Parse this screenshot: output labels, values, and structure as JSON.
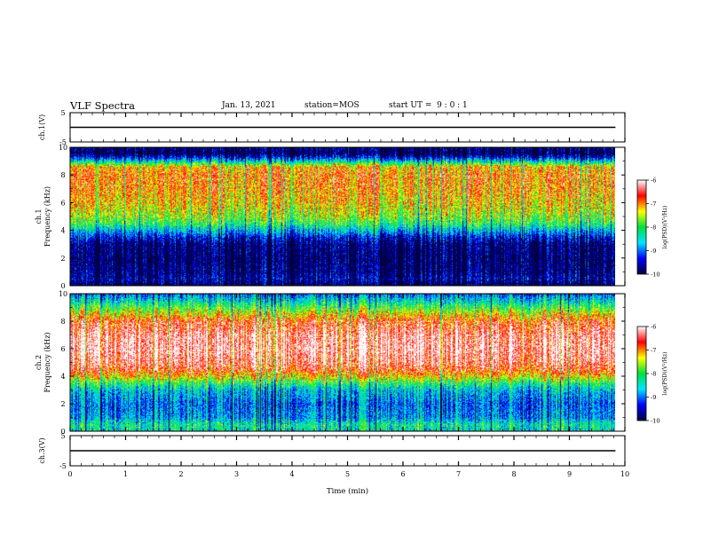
{
  "header": {
    "title": "VLF Spectra",
    "date": "Jan. 13, 2021",
    "station": "station=MOS",
    "start": "start UT =  9 : 0 : 1"
  },
  "chart_data": [
    {
      "type": "line",
      "name": "ch1-waveform",
      "ylabel": "ch.1(V)",
      "ylim": [
        -5,
        5
      ],
      "yticks": [
        5,
        -5
      ],
      "xlim": [
        0,
        10
      ],
      "x": [
        0,
        9.83
      ],
      "series": [
        {
          "values": [
            0,
            0
          ]
        }
      ]
    },
    {
      "type": "heatmap",
      "name": "ch1-spectrogram",
      "ylabel": "ch.1\nFrequency (kHz)",
      "ylim": [
        0,
        10
      ],
      "yticks": [
        0,
        2,
        4,
        6,
        8,
        10
      ],
      "xlim": [
        0,
        10
      ],
      "colorbar": {
        "label": "log(PSD)(V²/Hz)",
        "range": [
          -10,
          -6
        ],
        "ticks": [
          "-6",
          "-7",
          "-8",
          "-9",
          "-10"
        ]
      },
      "freq_profile_log_psd": [
        [
          0.0,
          -10
        ],
        [
          0.5,
          -9.6
        ],
        [
          1.0,
          -9.8
        ],
        [
          2.0,
          -9.9
        ],
        [
          3.0,
          -9.8
        ],
        [
          3.5,
          -9.4
        ],
        [
          4.0,
          -8.7
        ],
        [
          4.5,
          -8.0
        ],
        [
          5.0,
          -7.6
        ],
        [
          6.0,
          -7.2
        ],
        [
          7.0,
          -7.0
        ],
        [
          8.0,
          -6.9
        ],
        [
          8.6,
          -7.1
        ],
        [
          9.0,
          -8.4
        ],
        [
          9.3,
          -9.4
        ],
        [
          9.6,
          -10
        ],
        [
          10.0,
          -9.8
        ]
      ]
    },
    {
      "type": "heatmap",
      "name": "ch2-spectrogram",
      "ylabel": "ch.2\nFrequency (kHz)",
      "ylim": [
        0,
        10
      ],
      "yticks": [
        0,
        2,
        4,
        6,
        8,
        10
      ],
      "xlim": [
        0,
        10
      ],
      "colorbar": {
        "label": "log(PSD)(V²/Hz)",
        "range": [
          -10,
          -6
        ],
        "ticks": [
          "-6",
          "-7",
          "-8",
          "-9",
          "-10"
        ]
      },
      "freq_profile_log_psd": [
        [
          0.0,
          -8.4
        ],
        [
          0.5,
          -8.2
        ],
        [
          1.0,
          -8.8
        ],
        [
          2.0,
          -9.0
        ],
        [
          3.0,
          -8.6
        ],
        [
          3.5,
          -8.0
        ],
        [
          4.0,
          -7.2
        ],
        [
          4.5,
          -6.6
        ],
        [
          5.0,
          -6.3
        ],
        [
          6.0,
          -6.1
        ],
        [
          7.0,
          -6.2
        ],
        [
          8.0,
          -6.6
        ],
        [
          8.5,
          -7.2
        ],
        [
          9.0,
          -7.8
        ],
        [
          9.5,
          -8.4
        ],
        [
          10.0,
          -9.0
        ]
      ]
    },
    {
      "type": "line",
      "name": "ch3-waveform",
      "ylabel": "ch.3(V)",
      "xlabel": "Time (min)",
      "ylim": [
        -5,
        5
      ],
      "yticks": [
        5,
        -5
      ],
      "xlim": [
        0,
        10
      ],
      "xticks": [
        0,
        1,
        2,
        3,
        4,
        5,
        6,
        7,
        8,
        9,
        10
      ],
      "x": [
        0,
        9.83
      ],
      "series": [
        {
          "values": [
            0,
            0
          ]
        }
      ]
    }
  ],
  "colors": {
    "colormap": [
      "#00003c",
      "#0000ff",
      "#00e6ff",
      "#00e040",
      "#ffff00",
      "#ff0000",
      "#ffffff"
    ]
  }
}
